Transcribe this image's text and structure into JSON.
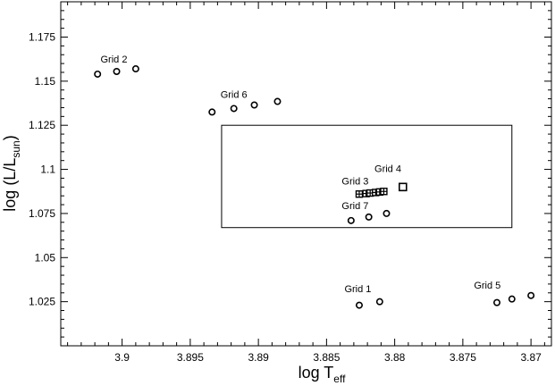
{
  "chart_data": {
    "type": "scatter",
    "x_reversed": true,
    "xlim": [
      3.9045,
      3.8685
    ],
    "ylim": [
      1.0,
      1.195
    ],
    "grid": false,
    "xaxis": {
      "label_main": "log T",
      "label_sub": "eff",
      "ticks": [
        {
          "value": 3.9,
          "label": "3.9"
        },
        {
          "value": 3.895,
          "label": "3.895"
        },
        {
          "value": 3.89,
          "label": "3.89"
        },
        {
          "value": 3.885,
          "label": "3.885"
        },
        {
          "value": 3.88,
          "label": "3.88"
        },
        {
          "value": 3.875,
          "label": "3.875"
        },
        {
          "value": 3.87,
          "label": "3.87"
        }
      ]
    },
    "yaxis": {
      "label_main": "log (L/L",
      "label_sub": "sun",
      "label_end": ")",
      "ticks": [
        {
          "value": 1.025,
          "label": "1.025"
        },
        {
          "value": 1.05,
          "label": "1.05"
        },
        {
          "value": 1.075,
          "label": "1.075"
        },
        {
          "value": 1.1,
          "label": "1.1"
        },
        {
          "value": 1.125,
          "label": "1.125"
        },
        {
          "value": 1.15,
          "label": "1.15"
        },
        {
          "value": 1.175,
          "label": "1.175"
        }
      ]
    },
    "box": {
      "x": [
        3.8927,
        3.8714
      ],
      "y": [
        1.067,
        1.125
      ]
    },
    "groups": [
      {
        "label": "Grid 2",
        "label_x": 3.9006,
        "label_y": 1.1605,
        "marker": "circle",
        "points": [
          [
            3.9018,
            1.154
          ],
          [
            3.9004,
            1.1555
          ],
          [
            3.899,
            1.157
          ]
        ]
      },
      {
        "label": "Grid 6",
        "label_x": 3.8918,
        "label_y": 1.1405,
        "marker": "circle",
        "points": [
          [
            3.8934,
            1.1325
          ],
          [
            3.8918,
            1.1345
          ],
          [
            3.8903,
            1.1365
          ],
          [
            3.8886,
            1.1385
          ]
        ]
      },
      {
        "label": "Grid 4",
        "label_x": 3.8805,
        "label_y": 1.0985,
        "marker": "square",
        "points": [
          [
            3.8794,
            1.09
          ]
        ]
      },
      {
        "label": "Grid 3",
        "label_x": 3.8829,
        "label_y": 1.0915,
        "marker": "plus-square",
        "points": [
          [
            3.8826,
            1.086
          ],
          [
            3.8821,
            1.0863
          ],
          [
            3.8818,
            1.0866
          ],
          [
            3.8814,
            1.0869
          ],
          [
            3.8811,
            1.0872
          ],
          [
            3.8808,
            1.0875
          ]
        ]
      },
      {
        "label": "Grid 7",
        "label_x": 3.8829,
        "label_y": 1.0775,
        "marker": "circle",
        "points": [
          [
            3.8832,
            1.071
          ],
          [
            3.8819,
            1.073
          ],
          [
            3.8806,
            1.075
          ]
        ]
      },
      {
        "label": "Grid 1",
        "label_x": 3.8827,
        "label_y": 1.0305,
        "marker": "circle",
        "points": [
          [
            3.8826,
            1.023
          ],
          [
            3.8811,
            1.025
          ]
        ]
      },
      {
        "label": "Grid 5",
        "label_x": 3.8732,
        "label_y": 1.0325,
        "marker": "circle",
        "points": [
          [
            3.8725,
            1.0245
          ],
          [
            3.8714,
            1.0265
          ],
          [
            3.87,
            1.0285
          ]
        ]
      }
    ]
  }
}
